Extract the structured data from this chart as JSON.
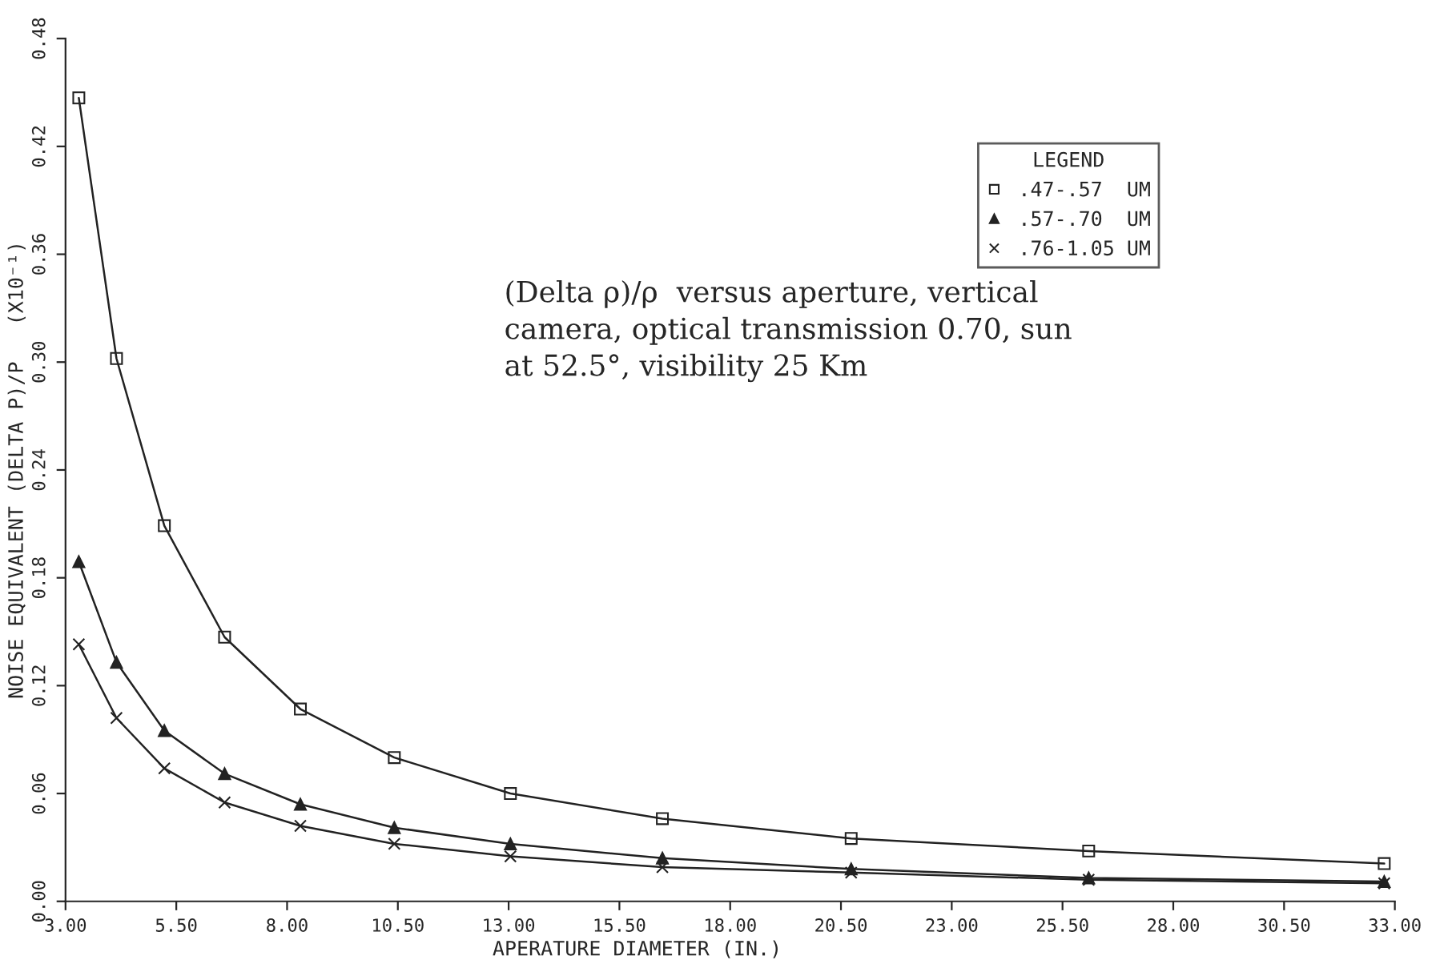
{
  "chart_data": {
    "type": "line",
    "xlabel": "APERATURE DIAMETER (IN.)",
    "ylabel": "NOISE EQUIVALENT (DELTA P)/P   (X10⁻¹)",
    "legend_title": "LEGEND",
    "annotations": [
      "(Delta ρ)/ρ  versus aperture, vertical\ncamera, optical transmission 0.70, sun\nat 52.5°, visibility 25 Km"
    ],
    "x": [
      3.3,
      4.15,
      5.23,
      6.59,
      8.3,
      10.42,
      13.04,
      16.47,
      20.73,
      26.09,
      32.76
    ],
    "series": [
      {
        "name": ".47-.57  UM",
        "color": "#222222",
        "marker": "square",
        "values": [
          0.447,
          0.302,
          0.209,
          0.147,
          0.107,
          0.08,
          0.06,
          0.046,
          0.035,
          0.028,
          0.021
        ]
      },
      {
        "name": ".57-.70  UM",
        "color": "#222222",
        "marker": "triangle",
        "values": [
          0.189,
          0.133,
          0.095,
          0.071,
          0.054,
          0.041,
          0.032,
          0.024,
          0.018,
          0.013,
          0.011
        ]
      },
      {
        "name": ".76-1.05 UM",
        "color": "#222222",
        "marker": "cross",
        "values": [
          0.143,
          0.102,
          0.074,
          0.055,
          0.042,
          0.032,
          0.025,
          0.019,
          0.016,
          0.012,
          0.01
        ]
      }
    ],
    "xlim": [
      3,
      33
    ],
    "xticks": [
      {
        "value": 3,
        "label": "3.00"
      },
      {
        "value": 5.5,
        "label": "5.50"
      },
      {
        "value": 8,
        "label": "8.00"
      },
      {
        "value": 10.5,
        "label": "10.50"
      },
      {
        "value": 13,
        "label": "13.00"
      },
      {
        "value": 15.5,
        "label": "15.50"
      },
      {
        "value": 18,
        "label": "18.00"
      },
      {
        "value": 20.5,
        "label": "20.50"
      },
      {
        "value": 23,
        "label": "23.00"
      },
      {
        "value": 25.5,
        "label": "25.50"
      },
      {
        "value": 28,
        "label": "28.00"
      },
      {
        "value": 30.5,
        "label": "30.50"
      },
      {
        "value": 33,
        "label": "33.00"
      }
    ],
    "ylim": [
      0,
      0.48
    ],
    "yticks": [
      {
        "value": 0,
        "label": "0.00"
      },
      {
        "value": 0.06,
        "label": "0.06"
      },
      {
        "value": 0.12,
        "label": "0.12"
      },
      {
        "value": 0.18,
        "label": "0.18"
      },
      {
        "value": 0.24,
        "label": "0.24"
      },
      {
        "value": 0.3,
        "label": "0.30"
      },
      {
        "value": 0.36,
        "label": "0.36"
      },
      {
        "value": 0.42,
        "label": "0.42"
      },
      {
        "value": 0.48,
        "label": "0.48"
      }
    ],
    "grid": false,
    "legend": "top right",
    "line_style": "solid"
  }
}
